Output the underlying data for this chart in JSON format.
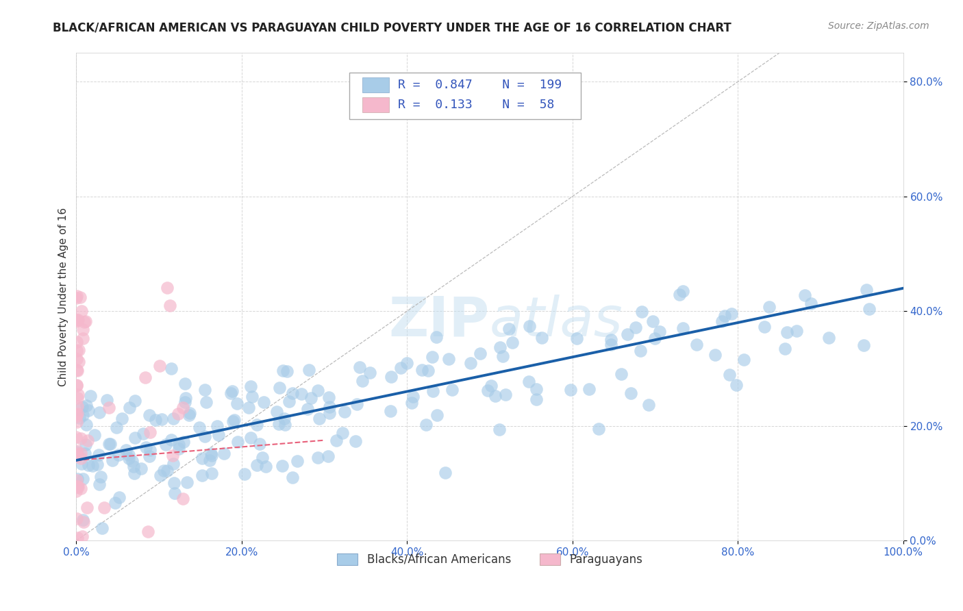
{
  "title": "BLACK/AFRICAN AMERICAN VS PARAGUAYAN CHILD POVERTY UNDER THE AGE OF 16 CORRELATION CHART",
  "source": "Source: ZipAtlas.com",
  "ylabel": "Child Poverty Under the Age of 16",
  "xlim": [
    0.0,
    1.0
  ],
  "ylim": [
    0.0,
    0.85
  ],
  "x_ticks": [
    0.0,
    0.2,
    0.4,
    0.6,
    0.8,
    1.0
  ],
  "x_tick_labels": [
    "0.0%",
    "20.0%",
    "40.0%",
    "60.0%",
    "80.0%",
    "100.0%"
  ],
  "y_ticks": [
    0.0,
    0.2,
    0.4,
    0.6,
    0.8
  ],
  "y_tick_labels": [
    "0.0%",
    "20.0%",
    "40.0%",
    "60.0%",
    "80.0%"
  ],
  "blue_R": 0.847,
  "blue_N": 199,
  "pink_R": 0.133,
  "pink_N": 58,
  "blue_color": "#a8cce8",
  "pink_color": "#f5b8cc",
  "blue_line_color": "#1a5fa8",
  "pink_line_color": "#e8607a",
  "blue_trend_x": [
    0.0,
    1.0
  ],
  "blue_trend_y": [
    0.14,
    0.44
  ],
  "pink_trend_x": [
    0.0,
    0.3
  ],
  "pink_trend_y": [
    0.14,
    0.175
  ],
  "diag_line_x": [
    0.0,
    0.85
  ],
  "diag_line_y": [
    0.0,
    0.85
  ],
  "watermark_part1": "ZIP",
  "watermark_part2": "atlas",
  "legend_label_blue": "Blacks/African Americans",
  "legend_label_pink": "Paraguayans",
  "title_fontsize": 12,
  "axis_label_fontsize": 11,
  "tick_fontsize": 11,
  "legend_fontsize": 12,
  "source_fontsize": 10,
  "background_color": "#ffffff",
  "grid_color": "#cccccc"
}
